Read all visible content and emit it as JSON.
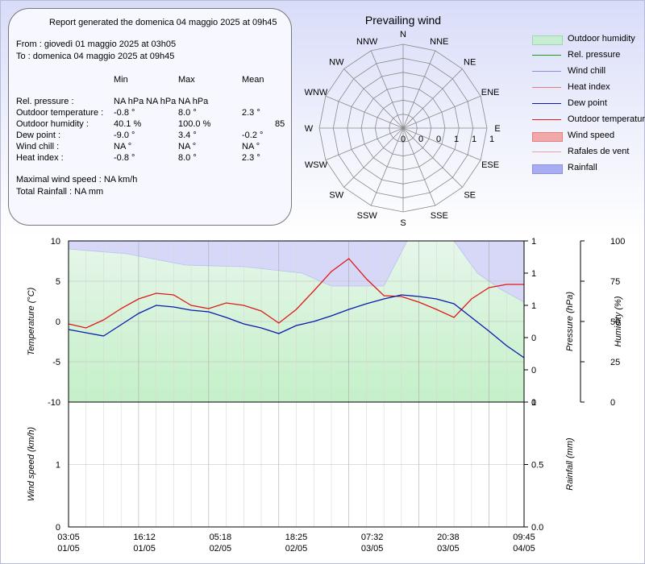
{
  "report": {
    "header": "Report generated the domenica 04 maggio 2025 at 09h45",
    "from": "From : giovedì 01 maggio 2025 at 03h05",
    "to": "To : domenica 04 maggio 2025 at 09h45",
    "col_min": "Min",
    "col_max": "Max",
    "col_mean": "Mean",
    "rows": [
      {
        "label": "Rel. pressure :",
        "min": "NA hPa",
        "max": "NA hPa",
        "mean": "NA hPa"
      },
      {
        "label": "Outdoor temperature :",
        "min": "-0.8 °",
        "max": "8.0 °",
        "mean": "2.3 °"
      },
      {
        "label": "Outdoor humidity :",
        "min": "40.1 %",
        "max": "100.0 %",
        "mean": "85"
      },
      {
        "label": "Dew point :",
        "min": "-9.0 °",
        "max": "3.4 °",
        "mean": "-0.2 °"
      },
      {
        "label": "Wind chill :",
        "min": "NA °",
        "max": "NA °",
        "mean": "NA °"
      },
      {
        "label": "Heat index :",
        "min": "-0.8 °",
        "max": "8.0 °",
        "mean": "2.3 °"
      }
    ],
    "max_wind": "Maximal wind speed : NA km/h",
    "total_rain": "Total Rainfall : NA mm"
  },
  "wind_rose": {
    "title": "Prevailing wind",
    "directions": [
      "N",
      "NNE",
      "NE",
      "ENE",
      "E",
      "ESE",
      "SE",
      "SSE",
      "S",
      "SSW",
      "SW",
      "WSW",
      "W",
      "WNW",
      "NW",
      "NNW"
    ],
    "ring_labels": [
      "0",
      "0",
      "0",
      "1",
      "1",
      "1"
    ]
  },
  "legend": [
    {
      "label": "Outdoor humidity",
      "kind": "box",
      "color": "#c8ecd4",
      "border": "#9fd8b0"
    },
    {
      "label": "Rel. pressure",
      "kind": "line",
      "color": "#1a9a1a"
    },
    {
      "label": "Wind chill",
      "kind": "line",
      "color": "#8f8fe0"
    },
    {
      "label": "Heat index",
      "kind": "line",
      "color": "#e08080"
    },
    {
      "label": "Dew point",
      "kind": "line",
      "color": "#0a1ab0"
    },
    {
      "label": "Outdoor temperature",
      "kind": "line",
      "color": "#e01818"
    },
    {
      "label": "Wind speed",
      "kind": "box",
      "color": "#f0a8a8",
      "border": "#e08080"
    },
    {
      "label": "Rafales de vent",
      "kind": "line",
      "color": "#f0a0a0"
    },
    {
      "label": "Rainfall",
      "kind": "box",
      "color": "#a8acf0",
      "border": "#8c90e0"
    }
  ],
  "chart_data": [
    {
      "type": "line",
      "ylabel": "Temperature (°C)",
      "ylim": [
        -10,
        10
      ],
      "yticks": [
        "10",
        "5",
        "0",
        "-5",
        "-10"
      ],
      "y2label": "Pressure (hPa)",
      "y2ticks": [
        "1",
        "1",
        "1",
        "0",
        "0",
        "0"
      ],
      "y3label": "Humidity (%)",
      "y3ticks": [
        "100",
        "75",
        "50",
        "25",
        "0"
      ],
      "series": [
        {
          "name": "Outdoor temperature",
          "color": "#e01818",
          "x": [
            0,
            3,
            6,
            9,
            12,
            15,
            18,
            21,
            24,
            27,
            30,
            33,
            36,
            39,
            42,
            45,
            48,
            51,
            54,
            57,
            60,
            63,
            66,
            69,
            72,
            75,
            78
          ],
          "y": [
            -0.3,
            -0.8,
            0.2,
            1.6,
            2.8,
            3.5,
            3.3,
            2.0,
            1.6,
            2.3,
            2.0,
            1.3,
            -0.2,
            1.5,
            3.8,
            6.2,
            7.8,
            5.3,
            3.2,
            3.1,
            2.4,
            1.5,
            0.5,
            2.8,
            4.2,
            4.6,
            4.6
          ]
        },
        {
          "name": "Dew point",
          "color": "#0a1ab0",
          "x": [
            0,
            3,
            6,
            9,
            12,
            15,
            18,
            21,
            24,
            27,
            30,
            33,
            36,
            39,
            42,
            45,
            48,
            51,
            54,
            57,
            60,
            63,
            66,
            69,
            72,
            75,
            78
          ],
          "y": [
            -1.0,
            -1.4,
            -1.8,
            -0.4,
            1.0,
            2.0,
            1.8,
            1.4,
            1.2,
            0.5,
            -0.3,
            -0.8,
            -1.5,
            -0.5,
            0.0,
            0.7,
            1.5,
            2.2,
            2.8,
            3.3,
            3.1,
            2.8,
            2.2,
            0.5,
            -1.2,
            -3.0,
            -4.5
          ]
        },
        {
          "name": "Outdoor humidity",
          "color": "#c8ecd4",
          "x": [
            0,
            10,
            20,
            30,
            40,
            45,
            50,
            54,
            58,
            62,
            66,
            70,
            74,
            78
          ],
          "y": [
            95,
            92,
            85,
            84,
            80,
            72,
            72,
            72,
            100,
            100,
            100,
            80,
            70,
            62
          ]
        }
      ],
      "xlabels": [
        "03:05\n01/05",
        "16:12\n01/05",
        "05:18\n02/05",
        "18:25\n02/05",
        "07:32\n03/05",
        "20:38\n03/05",
        "09:45\n04/05"
      ]
    },
    {
      "type": "bar",
      "ylabel": "Wind speed (km/h)",
      "y2label": "Rainfall (mm)",
      "yticks": [
        "1",
        "0"
      ],
      "y2ticks": [
        "1",
        "0.5",
        "0.0"
      ],
      "ylim": [
        0,
        2
      ],
      "values": []
    }
  ]
}
